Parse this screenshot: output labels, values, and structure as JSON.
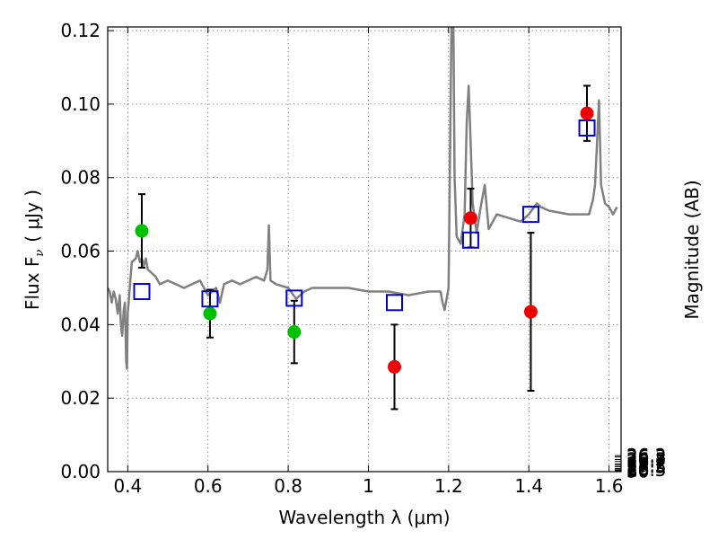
{
  "chart_data": {
    "type": "scatter",
    "title": "",
    "xlabel": "Wavelength  λ (μm)",
    "ylabel": "Flux  F",
    "ylabel_sub": "ν",
    "ylabel_unit": "( μJy )",
    "y2label": "Magnitude (AB)",
    "xlim": [
      0.35,
      1.63
    ],
    "ylim": [
      0.0,
      0.121
    ],
    "grid": true,
    "x_ticks": [
      0.4,
      0.6,
      0.8,
      1.0,
      1.2,
      1.4,
      1.6
    ],
    "x_tick_labels": [
      "0.4",
      "0.6",
      "0.8",
      "1",
      "1.2",
      "1.4",
      "1.6"
    ],
    "y_ticks": [
      0.0,
      0.02,
      0.04,
      0.06,
      0.08,
      0.1,
      0.12
    ],
    "y_tick_labels": [
      "0.00",
      "0.02",
      "0.04",
      "0.06",
      "0.08",
      "0.10",
      "0.12"
    ],
    "y2_ticks": [
      26.2,
      26.3,
      26.5,
      26.7,
      27,
      27.2,
      27.5,
      28,
      28.5,
      29,
      30
    ],
    "y2_tick_labels": [
      "26.2",
      "26.3",
      "26.5",
      "26.7",
      "27",
      "27.2",
      "27.5",
      "28",
      "28.5",
      "29",
      "30"
    ],
    "y2_zero_point_ujy": 0.00363,
    "series": [
      {
        "type": "line",
        "color": "#808080",
        "points": [
          [
            0.35,
            0.05
          ],
          [
            0.355,
            0.049
          ],
          [
            0.36,
            0.046
          ],
          [
            0.365,
            0.049
          ],
          [
            0.37,
            0.047
          ],
          [
            0.375,
            0.043
          ],
          [
            0.38,
            0.048
          ],
          [
            0.383,
            0.04
          ],
          [
            0.386,
            0.037
          ],
          [
            0.39,
            0.044
          ],
          [
            0.393,
            0.046
          ],
          [
            0.396,
            0.03
          ],
          [
            0.398,
            0.028
          ],
          [
            0.4,
            0.043
          ],
          [
            0.405,
            0.05
          ],
          [
            0.41,
            0.057
          ],
          [
            0.42,
            0.058
          ],
          [
            0.425,
            0.06
          ],
          [
            0.43,
            0.057
          ],
          [
            0.435,
            0.058
          ],
          [
            0.44,
            0.056
          ],
          [
            0.445,
            0.058
          ],
          [
            0.45,
            0.055
          ],
          [
            0.46,
            0.054
          ],
          [
            0.47,
            0.053
          ],
          [
            0.48,
            0.051
          ],
          [
            0.5,
            0.052
          ],
          [
            0.52,
            0.051
          ],
          [
            0.54,
            0.05
          ],
          [
            0.56,
            0.051
          ],
          [
            0.58,
            0.052
          ],
          [
            0.6,
            0.048
          ],
          [
            0.62,
            0.05
          ],
          [
            0.63,
            0.046
          ],
          [
            0.64,
            0.051
          ],
          [
            0.66,
            0.052
          ],
          [
            0.68,
            0.051
          ],
          [
            0.7,
            0.052
          ],
          [
            0.72,
            0.053
          ],
          [
            0.74,
            0.052
          ],
          [
            0.748,
            0.055
          ],
          [
            0.752,
            0.067
          ],
          [
            0.756,
            0.052
          ],
          [
            0.77,
            0.051
          ],
          [
            0.8,
            0.05
          ],
          [
            0.82,
            0.047
          ],
          [
            0.84,
            0.049
          ],
          [
            0.86,
            0.05
          ],
          [
            0.9,
            0.05
          ],
          [
            0.95,
            0.05
          ],
          [
            1.0,
            0.049
          ],
          [
            1.05,
            0.049
          ],
          [
            1.1,
            0.048
          ],
          [
            1.15,
            0.049
          ],
          [
            1.18,
            0.049
          ],
          [
            1.185,
            0.046
          ],
          [
            1.19,
            0.044
          ],
          [
            1.2,
            0.05
          ],
          [
            1.204,
            0.09
          ],
          [
            1.207,
            0.121
          ],
          [
            1.212,
            0.121
          ],
          [
            1.215,
            0.08
          ],
          [
            1.22,
            0.064
          ],
          [
            1.23,
            0.062
          ],
          [
            1.24,
            0.07
          ],
          [
            1.245,
            0.095
          ],
          [
            1.25,
            0.105
          ],
          [
            1.26,
            0.073
          ],
          [
            1.27,
            0.065
          ],
          [
            1.28,
            0.072
          ],
          [
            1.29,
            0.078
          ],
          [
            1.3,
            0.066
          ],
          [
            1.32,
            0.07
          ],
          [
            1.35,
            0.069
          ],
          [
            1.38,
            0.068
          ],
          [
            1.4,
            0.07
          ],
          [
            1.42,
            0.073
          ],
          [
            1.43,
            0.072
          ],
          [
            1.45,
            0.071
          ],
          [
            1.5,
            0.07
          ],
          [
            1.55,
            0.07
          ],
          [
            1.56,
            0.074
          ],
          [
            1.565,
            0.078
          ],
          [
            1.575,
            0.101
          ],
          [
            1.58,
            0.078
          ],
          [
            1.59,
            0.073
          ],
          [
            1.6,
            0.072
          ],
          [
            1.61,
            0.07
          ],
          [
            1.62,
            0.072
          ]
        ]
      },
      {
        "type": "points",
        "color": "#00c000",
        "points": [
          [
            0.435,
            0.0655
          ],
          [
            0.605,
            0.043
          ],
          [
            0.815,
            0.038
          ]
        ],
        "errors": [
          0.01,
          0.0065,
          0.0085
        ]
      },
      {
        "type": "points",
        "color": "#ee0000",
        "points": [
          [
            1.065,
            0.0285
          ],
          [
            1.255,
            0.069
          ],
          [
            1.405,
            0.0435
          ],
          [
            1.545,
            0.0975
          ]
        ],
        "errors": [
          0.0115,
          0.008,
          0.0215,
          0.0075
        ]
      },
      {
        "type": "squares",
        "color": "#0000cc",
        "points": [
          [
            0.435,
            0.049
          ],
          [
            0.605,
            0.047
          ],
          [
            0.815,
            0.0472
          ],
          [
            1.065,
            0.046
          ],
          [
            1.255,
            0.063
          ],
          [
            1.405,
            0.07
          ],
          [
            1.545,
            0.0935
          ]
        ]
      }
    ]
  }
}
